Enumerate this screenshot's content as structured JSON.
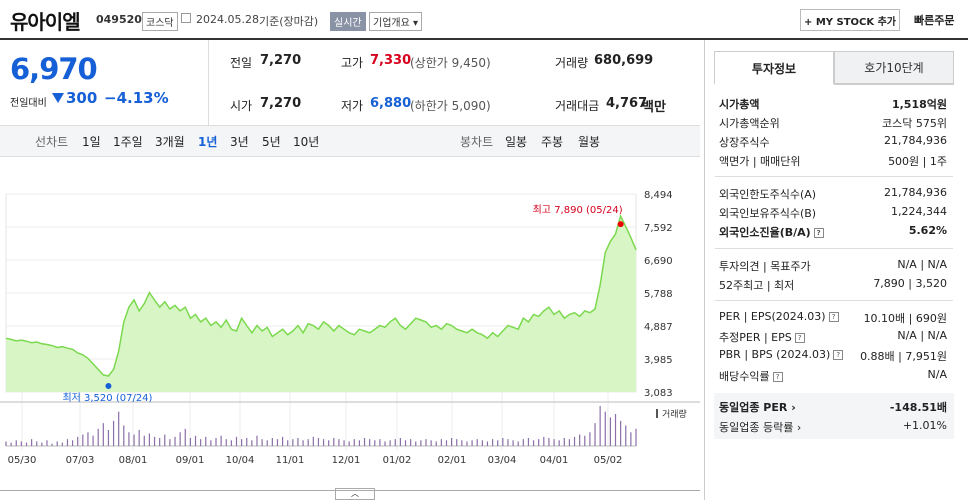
{
  "header": {
    "company": "유아이엘",
    "code": "049520",
    "market": "코스닥",
    "date": "2024.05.28",
    "basis": "기준(장마감)",
    "live": "실시간",
    "company_info": "기업개요",
    "mystock": "+ MY STOCK 추가",
    "fast_order": "빠른주문"
  },
  "summary": {
    "price": "6,970",
    "change_label": "전일대비",
    "change": "300",
    "change_pct": "−4.13%",
    "prev_label": "전일",
    "prev": "7,270",
    "high_label": "고가",
    "high": "7,330",
    "upper_limit": "(상한가 9,450)",
    "volume_label": "거래량",
    "volume": "680,699",
    "open_label": "시가",
    "open": "7,270",
    "low_label": "저가",
    "low": "6,880",
    "lower_limit": "(하한가 5,090)",
    "amount_label": "거래대금",
    "amount": "4,767",
    "amount_unit": "백만"
  },
  "periods": {
    "line_label": "선차트",
    "line": [
      "1일",
      "1주일",
      "3개월",
      "1년",
      "3년",
      "5년",
      "10년"
    ],
    "active": "1년",
    "candle_label": "봉차트",
    "candle": [
      "일봉",
      "주봉",
      "월봉"
    ]
  },
  "chart_data": {
    "type": "area",
    "y_ticks": [
      "8,494",
      "7,592",
      "6,690",
      "5,788",
      "4,887",
      "3,985",
      "3,083"
    ],
    "ylim": [
      3083,
      8494
    ],
    "x_ticks": [
      "05/30",
      "07/03",
      "08/01",
      "09/01",
      "10/04",
      "11/01",
      "12/01",
      "01/02",
      "02/01",
      "03/04",
      "04/01",
      "05/02"
    ],
    "max_label": "최고 7,890 (05/24)",
    "min_label": "최저 3,520 (07/24)",
    "volume_label": "거래량",
    "prices": [
      4550,
      4520,
      4480,
      4500,
      4470,
      4430,
      4450,
      4400,
      4380,
      4350,
      4300,
      4320,
      4280,
      4250,
      4150,
      4100,
      4000,
      3850,
      3700,
      3550,
      3520,
      3700,
      4200,
      5000,
      5400,
      5600,
      5300,
      5500,
      5800,
      5600,
      5400,
      5550,
      5350,
      5450,
      5300,
      5400,
      5100,
      5200,
      5000,
      5100,
      4900,
      5000,
      4850,
      5050,
      4800,
      4750,
      5100,
      4900,
      4700,
      4900,
      4750,
      4850,
      4600,
      4700,
      4800,
      4650,
      4750,
      4900,
      4700,
      4950,
      4900,
      4800,
      5000,
      4900,
      4750,
      4900,
      4800,
      4700,
      4650,
      4800,
      4750,
      4700,
      4800,
      4900,
      4850,
      5000,
      5100,
      4900,
      4800,
      4950,
      5100,
      5050,
      5000,
      4850,
      4900,
      4800,
      4950,
      4900,
      4800,
      4750,
      4700,
      4800,
      4700,
      4650,
      4550,
      4700,
      4600,
      4750,
      4900,
      4850,
      4800,
      5100,
      5000,
      5200,
      5150,
      5300,
      5400,
      5200,
      5300,
      5100,
      5200,
      5250,
      5150,
      5300,
      5250,
      5350,
      6000,
      6900,
      7200,
      7400,
      7890,
      7600,
      7300,
      6970
    ],
    "volumes": [
      4,
      3,
      5,
      4,
      3,
      6,
      4,
      3,
      5,
      2,
      4,
      3,
      6,
      5,
      8,
      10,
      12,
      9,
      15,
      20,
      14,
      22,
      30,
      18,
      12,
      10,
      14,
      9,
      11,
      8,
      7,
      10,
      6,
      8,
      12,
      15,
      7,
      9,
      6,
      8,
      5,
      7,
      9,
      6,
      5,
      8,
      6,
      7,
      5,
      9,
      6,
      5,
      7,
      6,
      8,
      5,
      6,
      7,
      5,
      6,
      8,
      7,
      6,
      5,
      7,
      6,
      5,
      4,
      6,
      5,
      7,
      6,
      5,
      6,
      4,
      5,
      6,
      7,
      5,
      6,
      4,
      5,
      6,
      5,
      4,
      6,
      5,
      7,
      6,
      5,
      4,
      5,
      6,
      5,
      4,
      6,
      5,
      7,
      6,
      5,
      4,
      6,
      7,
      5,
      6,
      8,
      7,
      6,
      5,
      7,
      6,
      8,
      10,
      9,
      12,
      20,
      35,
      30,
      25,
      28,
      22,
      18,
      12,
      15
    ]
  },
  "right": {
    "tab_active": "투자정보",
    "tab_other": "호가10단계",
    "rows": [
      {
        "label": "시가총액",
        "value": "1,518억원",
        "bold": true
      },
      {
        "label": "시가총액순위",
        "value": "코스닥 575위"
      },
      {
        "label": "상장주식수",
        "value": "21,784,936"
      },
      {
        "label": "액면가 | 매매단위",
        "value": "500원 | 1주"
      },
      {
        "label": "외국인한도주식수(A)",
        "value": "21,784,936"
      },
      {
        "label": "외국인보유주식수(B)",
        "value": "1,224,344"
      },
      {
        "label": "외국인소진율(B/A)",
        "value": "5.62%",
        "bold": true
      },
      {
        "label": "투자의견 | 목표주가",
        "value": "N/A | N/A"
      },
      {
        "label": "52주최고 | 최저",
        "value": "7,890 | 3,520"
      },
      {
        "label": "PER | EPS(2024.03)",
        "value": "10.10배 | 690원"
      },
      {
        "label": "추정PER | EPS",
        "value": "N/A | N/A"
      },
      {
        "label": "PBR | BPS (2024.03)",
        "value": "0.88배 | 7,951원"
      },
      {
        "label": "배당수익률",
        "value": "N/A"
      }
    ],
    "sector_per_label": "동일업종 PER",
    "sector_per": "-148.51배",
    "sector_rate_label": "동일업종 등락률",
    "sector_rate": "+1.01%"
  }
}
